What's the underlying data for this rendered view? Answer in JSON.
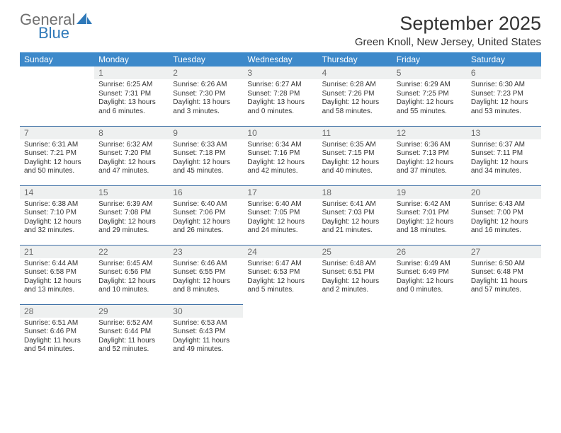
{
  "logo": {
    "word1": "General",
    "word2": "Blue",
    "icon_color": "#2f79b9",
    "grey": "#6f6f6f"
  },
  "title": "September 2025",
  "location": "Green Knoll, New Jersey, United States",
  "colors": {
    "header_bg": "#3d89ca",
    "header_text": "#ffffff",
    "row_divider": "#3d6fa5",
    "daynum_bg": "#eef0f0",
    "daynum_text": "#6c6c6c",
    "body_text": "#333333",
    "background": "#ffffff"
  },
  "weekdays": [
    "Sunday",
    "Monday",
    "Tuesday",
    "Wednesday",
    "Thursday",
    "Friday",
    "Saturday"
  ],
  "weeks": [
    [
      null,
      {
        "n": "1",
        "sr": "Sunrise: 6:25 AM",
        "ss": "Sunset: 7:31 PM",
        "dl": "Daylight: 13 hours and 6 minutes."
      },
      {
        "n": "2",
        "sr": "Sunrise: 6:26 AM",
        "ss": "Sunset: 7:30 PM",
        "dl": "Daylight: 13 hours and 3 minutes."
      },
      {
        "n": "3",
        "sr": "Sunrise: 6:27 AM",
        "ss": "Sunset: 7:28 PM",
        "dl": "Daylight: 13 hours and 0 minutes."
      },
      {
        "n": "4",
        "sr": "Sunrise: 6:28 AM",
        "ss": "Sunset: 7:26 PM",
        "dl": "Daylight: 12 hours and 58 minutes."
      },
      {
        "n": "5",
        "sr": "Sunrise: 6:29 AM",
        "ss": "Sunset: 7:25 PM",
        "dl": "Daylight: 12 hours and 55 minutes."
      },
      {
        "n": "6",
        "sr": "Sunrise: 6:30 AM",
        "ss": "Sunset: 7:23 PM",
        "dl": "Daylight: 12 hours and 53 minutes."
      }
    ],
    [
      {
        "n": "7",
        "sr": "Sunrise: 6:31 AM",
        "ss": "Sunset: 7:21 PM",
        "dl": "Daylight: 12 hours and 50 minutes."
      },
      {
        "n": "8",
        "sr": "Sunrise: 6:32 AM",
        "ss": "Sunset: 7:20 PM",
        "dl": "Daylight: 12 hours and 47 minutes."
      },
      {
        "n": "9",
        "sr": "Sunrise: 6:33 AM",
        "ss": "Sunset: 7:18 PM",
        "dl": "Daylight: 12 hours and 45 minutes."
      },
      {
        "n": "10",
        "sr": "Sunrise: 6:34 AM",
        "ss": "Sunset: 7:16 PM",
        "dl": "Daylight: 12 hours and 42 minutes."
      },
      {
        "n": "11",
        "sr": "Sunrise: 6:35 AM",
        "ss": "Sunset: 7:15 PM",
        "dl": "Daylight: 12 hours and 40 minutes."
      },
      {
        "n": "12",
        "sr": "Sunrise: 6:36 AM",
        "ss": "Sunset: 7:13 PM",
        "dl": "Daylight: 12 hours and 37 minutes."
      },
      {
        "n": "13",
        "sr": "Sunrise: 6:37 AM",
        "ss": "Sunset: 7:11 PM",
        "dl": "Daylight: 12 hours and 34 minutes."
      }
    ],
    [
      {
        "n": "14",
        "sr": "Sunrise: 6:38 AM",
        "ss": "Sunset: 7:10 PM",
        "dl": "Daylight: 12 hours and 32 minutes."
      },
      {
        "n": "15",
        "sr": "Sunrise: 6:39 AM",
        "ss": "Sunset: 7:08 PM",
        "dl": "Daylight: 12 hours and 29 minutes."
      },
      {
        "n": "16",
        "sr": "Sunrise: 6:40 AM",
        "ss": "Sunset: 7:06 PM",
        "dl": "Daylight: 12 hours and 26 minutes."
      },
      {
        "n": "17",
        "sr": "Sunrise: 6:40 AM",
        "ss": "Sunset: 7:05 PM",
        "dl": "Daylight: 12 hours and 24 minutes."
      },
      {
        "n": "18",
        "sr": "Sunrise: 6:41 AM",
        "ss": "Sunset: 7:03 PM",
        "dl": "Daylight: 12 hours and 21 minutes."
      },
      {
        "n": "19",
        "sr": "Sunrise: 6:42 AM",
        "ss": "Sunset: 7:01 PM",
        "dl": "Daylight: 12 hours and 18 minutes."
      },
      {
        "n": "20",
        "sr": "Sunrise: 6:43 AM",
        "ss": "Sunset: 7:00 PM",
        "dl": "Daylight: 12 hours and 16 minutes."
      }
    ],
    [
      {
        "n": "21",
        "sr": "Sunrise: 6:44 AM",
        "ss": "Sunset: 6:58 PM",
        "dl": "Daylight: 12 hours and 13 minutes."
      },
      {
        "n": "22",
        "sr": "Sunrise: 6:45 AM",
        "ss": "Sunset: 6:56 PM",
        "dl": "Daylight: 12 hours and 10 minutes."
      },
      {
        "n": "23",
        "sr": "Sunrise: 6:46 AM",
        "ss": "Sunset: 6:55 PM",
        "dl": "Daylight: 12 hours and 8 minutes."
      },
      {
        "n": "24",
        "sr": "Sunrise: 6:47 AM",
        "ss": "Sunset: 6:53 PM",
        "dl": "Daylight: 12 hours and 5 minutes."
      },
      {
        "n": "25",
        "sr": "Sunrise: 6:48 AM",
        "ss": "Sunset: 6:51 PM",
        "dl": "Daylight: 12 hours and 2 minutes."
      },
      {
        "n": "26",
        "sr": "Sunrise: 6:49 AM",
        "ss": "Sunset: 6:49 PM",
        "dl": "Daylight: 12 hours and 0 minutes."
      },
      {
        "n": "27",
        "sr": "Sunrise: 6:50 AM",
        "ss": "Sunset: 6:48 PM",
        "dl": "Daylight: 11 hours and 57 minutes."
      }
    ],
    [
      {
        "n": "28",
        "sr": "Sunrise: 6:51 AM",
        "ss": "Sunset: 6:46 PM",
        "dl": "Daylight: 11 hours and 54 minutes."
      },
      {
        "n": "29",
        "sr": "Sunrise: 6:52 AM",
        "ss": "Sunset: 6:44 PM",
        "dl": "Daylight: 11 hours and 52 minutes."
      },
      {
        "n": "30",
        "sr": "Sunrise: 6:53 AM",
        "ss": "Sunset: 6:43 PM",
        "dl": "Daylight: 11 hours and 49 minutes."
      },
      null,
      null,
      null,
      null
    ]
  ]
}
